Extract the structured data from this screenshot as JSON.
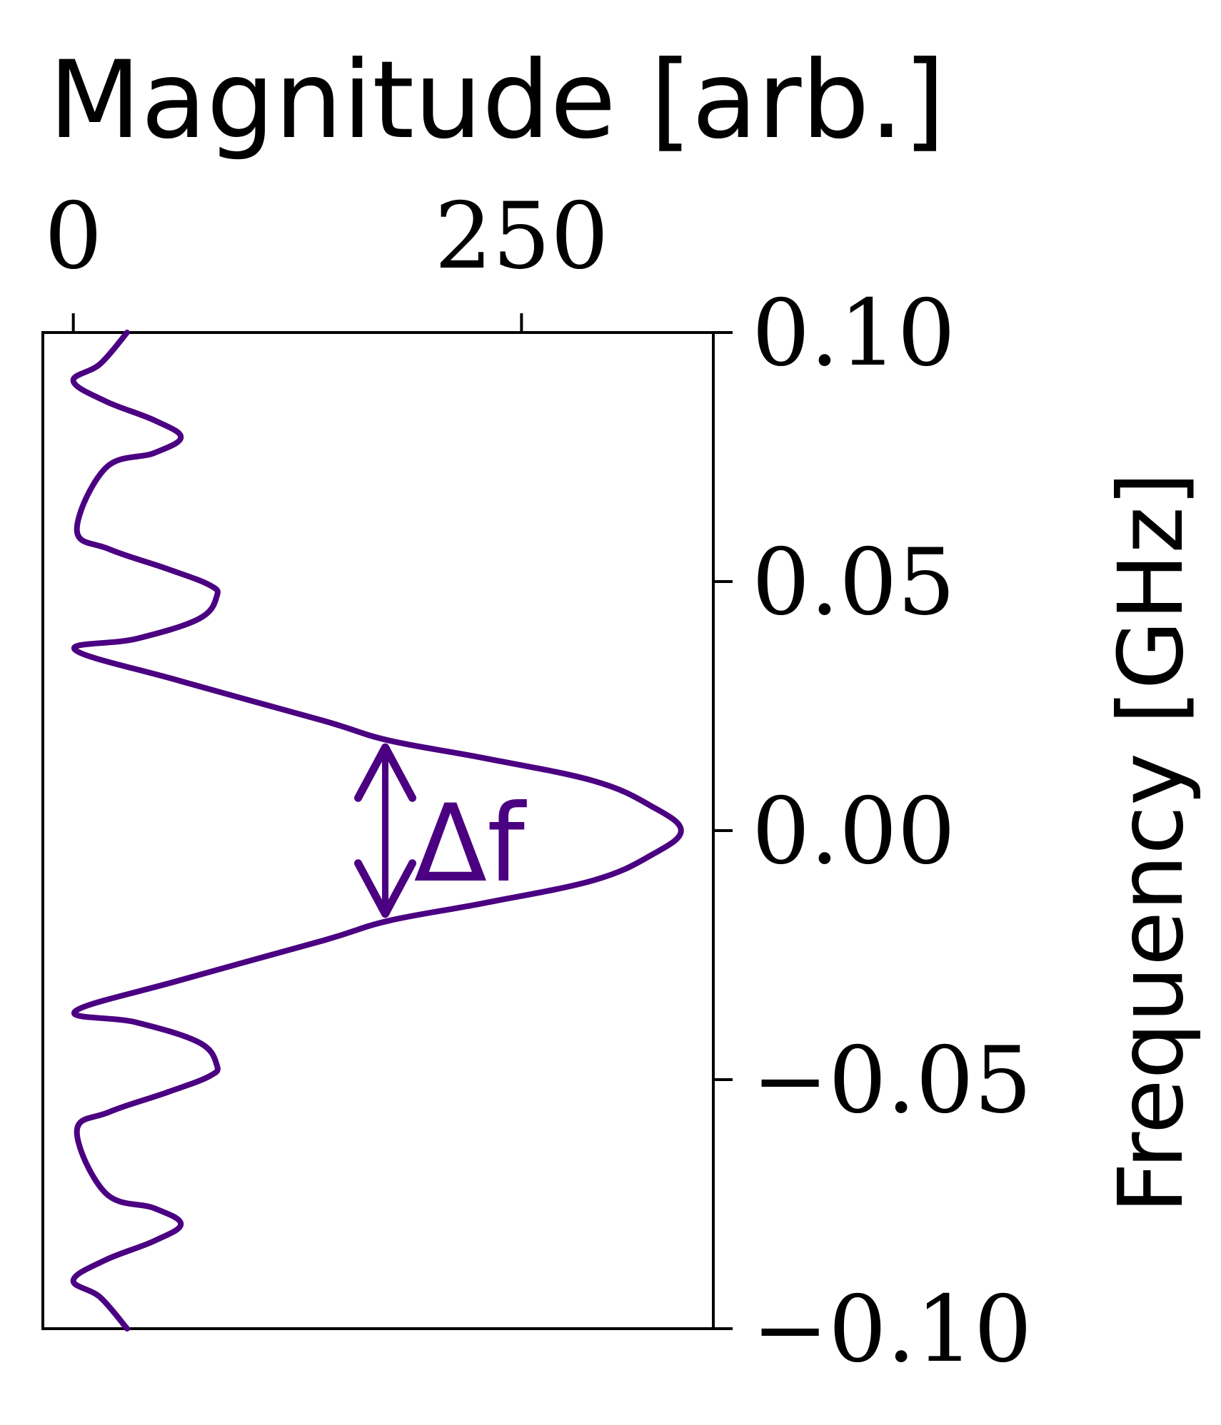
{
  "chart_data": {
    "type": "line",
    "title": "Magnitude [arb.]",
    "xlabel": "Magnitude [arb.]",
    "ylabel": "Frequency [GHz]",
    "xlim": [
      -17,
      357
    ],
    "ylim": [
      -0.1,
      0.1
    ],
    "x_ticks": [
      0,
      250
    ],
    "x_tick_labels": [
      "0",
      "250"
    ],
    "y_ticks": [
      0.1,
      0.05,
      0.0,
      -0.05,
      -0.1
    ],
    "y_tick_labels": [
      "0.10",
      "0.05",
      "0.00",
      "−0.05",
      "−0.10"
    ],
    "x_axis_position": "top",
    "y_axis_position": "right",
    "grid": false,
    "series": [
      {
        "color": "#4b0082",
        "points": [
          [
            0.1,
            30
          ],
          [
            0.0937,
            15
          ],
          [
            0.0903,
            0
          ],
          [
            0.0862,
            18
          ],
          [
            0.0824,
            45
          ],
          [
            0.079,
            60
          ],
          [
            0.0758,
            45
          ],
          [
            0.0728,
            18
          ],
          [
            0.0603,
            2
          ],
          [
            0.0565,
            20
          ],
          [
            0.0526,
            52
          ],
          [
            0.0493,
            76
          ],
          [
            0.047,
            80
          ],
          [
            0.0425,
            70
          ],
          [
            0.0385,
            35
          ],
          [
            0.0363,
            1
          ],
          [
            0.03,
            60
          ],
          [
            0.022,
            140
          ],
          [
            0.0181,
            176
          ],
          [
            0.0145,
            230
          ],
          [
            0.01,
            290
          ],
          [
            0.005,
            322
          ],
          [
            0.0,
            339
          ],
          [
            -0.005,
            322
          ],
          [
            -0.01,
            290
          ],
          [
            -0.0145,
            230
          ],
          [
            -0.0181,
            176
          ],
          [
            -0.022,
            140
          ],
          [
            -0.03,
            60
          ],
          [
            -0.0363,
            1
          ],
          [
            -0.0385,
            35
          ],
          [
            -0.0425,
            70
          ],
          [
            -0.047,
            80
          ],
          [
            -0.0493,
            76
          ],
          [
            -0.0526,
            52
          ],
          [
            -0.0565,
            20
          ],
          [
            -0.0603,
            2
          ],
          [
            -0.0728,
            18
          ],
          [
            -0.0758,
            45
          ],
          [
            -0.079,
            60
          ],
          [
            -0.0824,
            45
          ],
          [
            -0.0862,
            18
          ],
          [
            -0.0903,
            0
          ],
          [
            -0.0937,
            15
          ],
          [
            -0.1,
            30
          ]
        ]
      }
    ],
    "annotations": [
      {
        "text": "Δf",
        "y_from": 0.0173,
        "y_to": -0.0173,
        "x": 174,
        "color": "#4b0082",
        "style": "double-arrow"
      }
    ]
  }
}
